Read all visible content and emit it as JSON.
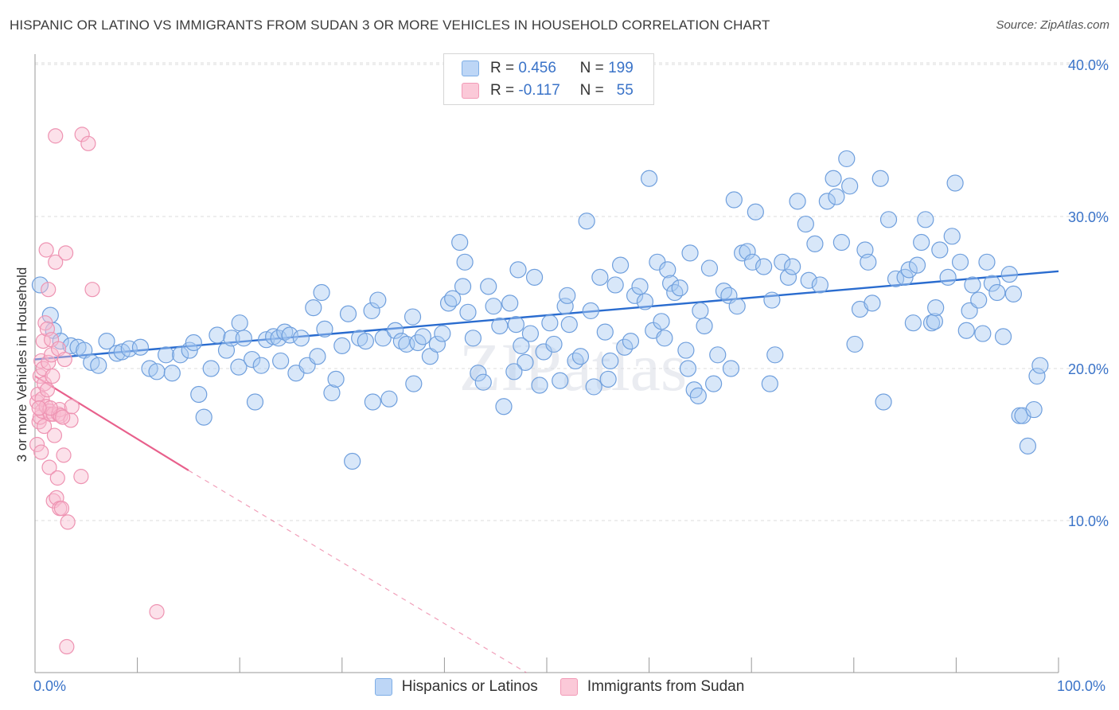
{
  "title": "HISPANIC OR LATINO VS IMMIGRANTS FROM SUDAN 3 OR MORE VEHICLES IN HOUSEHOLD CORRELATION CHART",
  "source": "Source: ZipAtlas.com",
  "watermark": "ZIPatlas",
  "legend_top": {
    "r_label": "R =",
    "n_label": "N =",
    "rows": [
      {
        "r": "0.456",
        "n": "199"
      },
      {
        "r": "-0.117",
        "n": "55"
      }
    ]
  },
  "chart_data": {
    "type": "scatter",
    "title": "HISPANIC OR LATINO VS IMMIGRANTS FROM SUDAN 3 OR MORE VEHICLES IN HOUSEHOLD CORRELATION CHART",
    "xlabel": "",
    "ylabel": "3 or more Vehicles in Household",
    "xlim": [
      0,
      100
    ],
    "ylim": [
      0,
      40
    ],
    "x_tick_labels": [
      "0.0%",
      "100.0%"
    ],
    "y_ticks": [
      10,
      20,
      30,
      40
    ],
    "y_tick_labels": [
      "10.0%",
      "20.0%",
      "30.0%",
      "40.0%"
    ],
    "grid": true,
    "legend_position": "bottom",
    "colors": {
      "blue": "#7eaee6",
      "blue_line": "#2a6ccf",
      "pink": "#f29bb7",
      "pink_line": "#e8608c",
      "axis_text": "#3a73c8"
    },
    "series": [
      {
        "name": "Hispanics or Latinos",
        "color": "#7eaee6",
        "trend": {
          "x": [
            0,
            100
          ],
          "y": [
            20.6,
            26.4
          ]
        },
        "points": [
          [
            0.5,
            25.5
          ],
          [
            1.5,
            23.5
          ],
          [
            1.8,
            22.5
          ],
          [
            2.5,
            21.8
          ],
          [
            3.5,
            21.5
          ],
          [
            4.2,
            21.4
          ],
          [
            4.8,
            21.2
          ],
          [
            5.5,
            20.4
          ],
          [
            6.2,
            20.2
          ],
          [
            7.0,
            21.8
          ],
          [
            8.0,
            21.0
          ],
          [
            8.5,
            21.1
          ],
          [
            9.2,
            21.3
          ],
          [
            10.3,
            21.4
          ],
          [
            11.2,
            20.0
          ],
          [
            11.9,
            19.8
          ],
          [
            12.8,
            20.9
          ],
          [
            13.4,
            19.7
          ],
          [
            14.2,
            20.9
          ],
          [
            15.1,
            21.2
          ],
          [
            15.5,
            21.7
          ],
          [
            16.0,
            18.3
          ],
          [
            16.5,
            16.8
          ],
          [
            17.2,
            20.0
          ],
          [
            17.8,
            22.2
          ],
          [
            18.7,
            21.2
          ],
          [
            19.2,
            22.0
          ],
          [
            19.9,
            20.1
          ],
          [
            20.4,
            22.0
          ],
          [
            21.2,
            20.6
          ],
          [
            21.5,
            17.8
          ],
          [
            22.1,
            20.2
          ],
          [
            22.6,
            21.9
          ],
          [
            23.3,
            22.1
          ],
          [
            23.8,
            22.0
          ],
          [
            24.4,
            22.4
          ],
          [
            24.9,
            22.2
          ],
          [
            25.5,
            19.7
          ],
          [
            26.0,
            22.0
          ],
          [
            26.6,
            20.2
          ],
          [
            27.2,
            24.0
          ],
          [
            27.6,
            20.8
          ],
          [
            28.3,
            22.6
          ],
          [
            29.0,
            18.4
          ],
          [
            29.4,
            19.3
          ],
          [
            30.0,
            21.5
          ],
          [
            30.6,
            23.6
          ],
          [
            31.0,
            13.9
          ],
          [
            31.7,
            22.0
          ],
          [
            32.3,
            21.8
          ],
          [
            32.9,
            23.8
          ],
          [
            33.5,
            24.5
          ],
          [
            34.0,
            22.0
          ],
          [
            34.6,
            18.0
          ],
          [
            35.2,
            22.5
          ],
          [
            35.8,
            21.8
          ],
          [
            36.3,
            21.6
          ],
          [
            36.9,
            23.4
          ],
          [
            37.4,
            21.7
          ],
          [
            37.9,
            22.1
          ],
          [
            38.6,
            20.8
          ],
          [
            39.3,
            21.6
          ],
          [
            39.8,
            22.3
          ],
          [
            40.4,
            24.3
          ],
          [
            40.8,
            24.6
          ],
          [
            41.5,
            28.3
          ],
          [
            41.8,
            25.4
          ],
          [
            42.3,
            23.7
          ],
          [
            42.8,
            22.0
          ],
          [
            43.3,
            19.7
          ],
          [
            43.8,
            19.1
          ],
          [
            44.3,
            25.4
          ],
          [
            44.8,
            24.1
          ],
          [
            45.4,
            22.8
          ],
          [
            45.8,
            17.5
          ],
          [
            46.4,
            24.3
          ],
          [
            47.0,
            22.9
          ],
          [
            47.5,
            21.5
          ],
          [
            47.9,
            20.4
          ],
          [
            48.4,
            22.3
          ],
          [
            48.8,
            26.0
          ],
          [
            49.3,
            18.9
          ],
          [
            49.7,
            21.1
          ],
          [
            50.3,
            23.0
          ],
          [
            50.7,
            21.6
          ],
          [
            51.3,
            19.2
          ],
          [
            51.8,
            24.1
          ],
          [
            52.2,
            22.9
          ],
          [
            52.8,
            20.5
          ],
          [
            53.3,
            20.8
          ],
          [
            53.9,
            29.7
          ],
          [
            54.3,
            23.8
          ],
          [
            54.6,
            18.8
          ],
          [
            55.2,
            26.0
          ],
          [
            55.7,
            22.4
          ],
          [
            56.2,
            20.5
          ],
          [
            56.7,
            25.5
          ],
          [
            57.2,
            26.8
          ],
          [
            57.6,
            21.4
          ],
          [
            58.2,
            21.8
          ],
          [
            58.6,
            24.8
          ],
          [
            59.1,
            25.4
          ],
          [
            59.6,
            24.4
          ],
          [
            60.0,
            32.5
          ],
          [
            60.4,
            22.5
          ],
          [
            60.8,
            27.0
          ],
          [
            61.2,
            23.1
          ],
          [
            61.8,
            26.5
          ],
          [
            62.1,
            25.6
          ],
          [
            62.5,
            25.0
          ],
          [
            63.0,
            25.3
          ],
          [
            63.6,
            21.2
          ],
          [
            64.0,
            27.6
          ],
          [
            64.4,
            18.6
          ],
          [
            64.8,
            18.2
          ],
          [
            65.4,
            22.8
          ],
          [
            65.9,
            26.6
          ],
          [
            66.3,
            19.0
          ],
          [
            66.7,
            20.9
          ],
          [
            67.3,
            25.1
          ],
          [
            67.8,
            24.8
          ],
          [
            68.3,
            31.1
          ],
          [
            68.6,
            24.1
          ],
          [
            69.1,
            27.6
          ],
          [
            69.6,
            27.7
          ],
          [
            70.1,
            27.0
          ],
          [
            70.4,
            30.3
          ],
          [
            71.2,
            26.7
          ],
          [
            71.8,
            19.0
          ],
          [
            72.3,
            20.9
          ],
          [
            73.0,
            27.0
          ],
          [
            73.6,
            26.0
          ],
          [
            74.0,
            26.7
          ],
          [
            74.5,
            31.0
          ],
          [
            75.3,
            29.5
          ],
          [
            75.6,
            25.8
          ],
          [
            76.2,
            28.2
          ],
          [
            76.7,
            25.5
          ],
          [
            77.4,
            31.0
          ],
          [
            78.0,
            32.5
          ],
          [
            78.3,
            31.3
          ],
          [
            78.8,
            28.3
          ],
          [
            79.3,
            33.8
          ],
          [
            79.6,
            32.0
          ],
          [
            80.1,
            21.6
          ],
          [
            80.6,
            23.9
          ],
          [
            81.1,
            27.8
          ],
          [
            81.4,
            27.0
          ],
          [
            81.8,
            24.3
          ],
          [
            82.6,
            32.5
          ],
          [
            82.9,
            17.8
          ],
          [
            83.4,
            29.8
          ],
          [
            84.1,
            25.9
          ],
          [
            85.0,
            26.0
          ],
          [
            85.4,
            26.5
          ],
          [
            85.8,
            23.0
          ],
          [
            86.2,
            26.8
          ],
          [
            86.6,
            28.3
          ],
          [
            87.0,
            29.8
          ],
          [
            87.6,
            23.0
          ],
          [
            87.9,
            23.1
          ],
          [
            88.4,
            27.8
          ],
          [
            89.2,
            26.0
          ],
          [
            89.6,
            28.7
          ],
          [
            89.9,
            32.2
          ],
          [
            90.4,
            27.0
          ],
          [
            91.3,
            23.8
          ],
          [
            91.6,
            25.5
          ],
          [
            92.2,
            24.5
          ],
          [
            92.6,
            22.3
          ],
          [
            93.0,
            27.0
          ],
          [
            93.5,
            25.6
          ],
          [
            94.0,
            25.0
          ],
          [
            94.6,
            22.1
          ],
          [
            95.2,
            26.2
          ],
          [
            95.6,
            24.9
          ],
          [
            96.2,
            16.9
          ],
          [
            96.5,
            16.9
          ],
          [
            97.0,
            14.9
          ],
          [
            97.6,
            17.3
          ],
          [
            97.9,
            19.5
          ],
          [
            98.2,
            20.2
          ],
          [
            68.0,
            20.0
          ],
          [
            72.0,
            24.5
          ],
          [
            37.0,
            19.0
          ],
          [
            24.0,
            20.5
          ],
          [
            33.0,
            17.8
          ],
          [
            46.8,
            19.8
          ],
          [
            56.0,
            19.3
          ],
          [
            61.5,
            22.0
          ],
          [
            28.0,
            25.0
          ],
          [
            42.0,
            27.0
          ],
          [
            52.0,
            24.8
          ],
          [
            88.0,
            24.0
          ],
          [
            91.0,
            22.5
          ],
          [
            63.8,
            20.0
          ],
          [
            20.0,
            23.0
          ],
          [
            47.2,
            26.5
          ],
          [
            65.0,
            23.8
          ]
        ]
      },
      {
        "name": "Immigrants from Sudan",
        "color": "#f29bb7",
        "trend": {
          "x": [
            0,
            15
          ],
          "y": [
            19.5,
            13.3
          ]
        },
        "trend_dashed": {
          "x": [
            15,
            48
          ],
          "y": [
            13.3,
            0.0
          ]
        },
        "points": [
          [
            0.2,
            15.0
          ],
          [
            0.2,
            17.8
          ],
          [
            0.3,
            18.3
          ],
          [
            0.4,
            16.5
          ],
          [
            0.5,
            19.5
          ],
          [
            0.5,
            16.8
          ],
          [
            0.6,
            14.5
          ],
          [
            0.6,
            20.5
          ],
          [
            0.7,
            17.2
          ],
          [
            0.7,
            18.0
          ],
          [
            0.8,
            20.0
          ],
          [
            0.8,
            21.8
          ],
          [
            0.9,
            19.0
          ],
          [
            0.9,
            16.2
          ],
          [
            1.0,
            23.0
          ],
          [
            1.1,
            17.5
          ],
          [
            1.1,
            27.8
          ],
          [
            1.2,
            18.6
          ],
          [
            1.2,
            22.6
          ],
          [
            1.3,
            20.4
          ],
          [
            1.3,
            25.2
          ],
          [
            1.4,
            17.2
          ],
          [
            1.4,
            13.5
          ],
          [
            1.5,
            17.0
          ],
          [
            1.6,
            21.9
          ],
          [
            1.6,
            20.9
          ],
          [
            1.7,
            19.5
          ],
          [
            1.8,
            11.3
          ],
          [
            1.8,
            17.0
          ],
          [
            1.9,
            15.6
          ],
          [
            2.0,
            35.3
          ],
          [
            2.0,
            27.0
          ],
          [
            2.1,
            11.5
          ],
          [
            2.2,
            12.8
          ],
          [
            2.3,
            21.3
          ],
          [
            2.3,
            17.0
          ],
          [
            2.4,
            10.8
          ],
          [
            2.4,
            17.3
          ],
          [
            2.5,
            16.9
          ],
          [
            2.6,
            10.8
          ],
          [
            2.8,
            14.3
          ],
          [
            2.9,
            20.6
          ],
          [
            3.0,
            27.6
          ],
          [
            3.2,
            9.9
          ],
          [
            3.5,
            16.6
          ],
          [
            3.6,
            17.5
          ],
          [
            4.5,
            12.9
          ],
          [
            4.6,
            35.4
          ],
          [
            5.2,
            34.8
          ],
          [
            5.6,
            25.2
          ],
          [
            11.9,
            4.0
          ],
          [
            3.1,
            1.7
          ],
          [
            1.5,
            17.4
          ],
          [
            2.7,
            16.8
          ],
          [
            0.4,
            17.4
          ]
        ]
      }
    ]
  },
  "legend_bottom": [
    {
      "label": "Hispanics or Latinos",
      "color": "#bdd6f6",
      "border": "#7eaee6"
    },
    {
      "label": "Immigrants from Sudan",
      "color": "#fbc9d8",
      "border": "#f29bb7"
    }
  ]
}
